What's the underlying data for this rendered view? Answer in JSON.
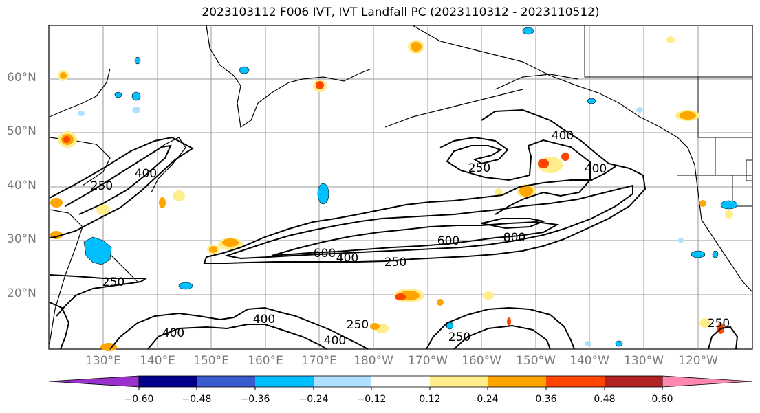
{
  "title": "2023103112 F006 IVT, IVT Landfall PC (2023110312 - 2023110512)",
  "map": {
    "lat_labels": [
      "60°N",
      "50°N",
      "40°N",
      "30°N",
      "20°N"
    ],
    "lon_labels": [
      "130°E",
      "140°E",
      "150°E",
      "160°E",
      "170°E",
      "180°W",
      "170°W",
      "160°W",
      "150°W",
      "140°W",
      "130°W",
      "120°W"
    ],
    "contour_labels": [
      "250",
      "400",
      "250",
      "400",
      "600",
      "400",
      "250",
      "600",
      "800",
      "250",
      "400",
      "400",
      "400",
      "250",
      "400",
      "250",
      "250"
    ]
  },
  "colorbar": {
    "ticks": [
      "−0.60",
      "−0.48",
      "−0.36",
      "−0.24",
      "−0.12",
      "0.12",
      "0.24",
      "0.36",
      "0.48",
      "0.60"
    ],
    "colors": [
      "#9932cc",
      "#00008b",
      "#3a5bcd",
      "#00bfff",
      "#b0e0ff",
      "#ffffff",
      "#ffec8b",
      "#ffa500",
      "#ff4500",
      "#b22222",
      "#ff88b0"
    ]
  }
}
